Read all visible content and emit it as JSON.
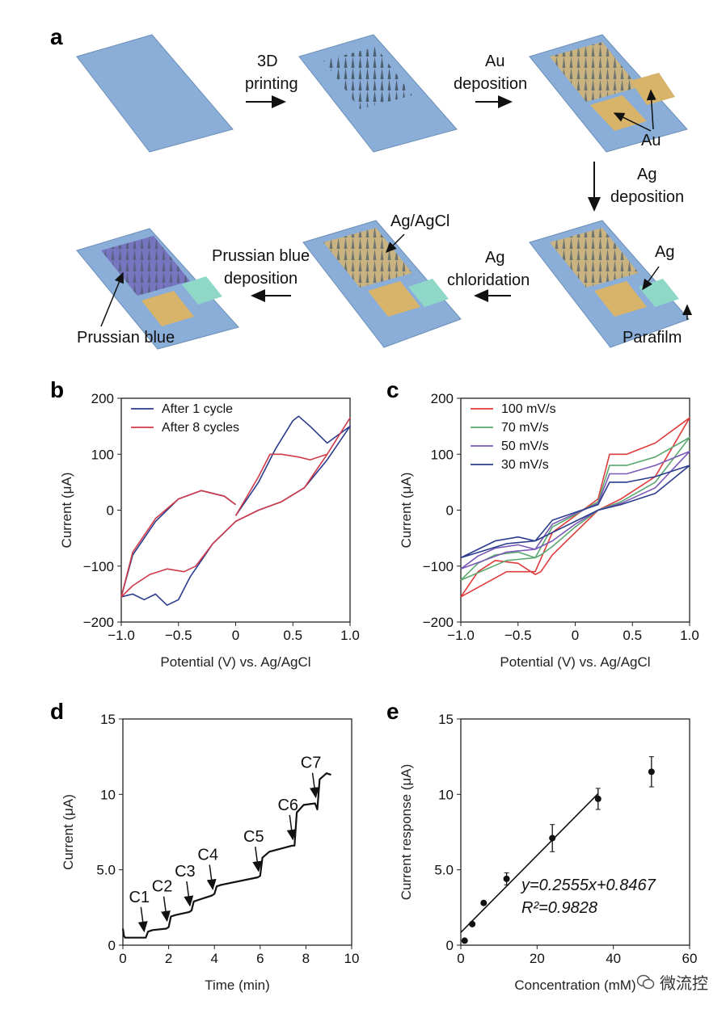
{
  "panel_a": {
    "letter": "a",
    "step1": [
      "3D",
      "printing"
    ],
    "step2": [
      "Au",
      "deposition"
    ],
    "au_label": "Au",
    "step3": [
      "Ag",
      "deposition"
    ],
    "ag_label": "Ag",
    "parafilm_label": "Parafilm",
    "step4": [
      "Ag",
      "chloridation"
    ],
    "agagcl_label": "Ag/AgCl",
    "step5": [
      "Prussian blue",
      "deposition"
    ],
    "prussian_label": "Prussian blue",
    "colors": {
      "base": "#8aaed8",
      "gold": "#d8b46a",
      "ag": "#8fd8c8",
      "prussian": "#7060b8",
      "needle": "#4a5a6a"
    }
  },
  "watermark": {
    "icon": "wechat-icon",
    "text": "微流控"
  },
  "chart_data": [
    {
      "panel": "b",
      "type": "line",
      "xlabel": "Potential (V) vs. Ag/AgCl",
      "ylabel": "Current (μA)",
      "xlim": [
        -1.0,
        1.0
      ],
      "ylim": [
        -200,
        200
      ],
      "xticks": [
        "−1.0",
        "−0.5",
        "0",
        "0.5",
        "1.0"
      ],
      "yticks": [
        "−200",
        "−100",
        "0",
        "100",
        "200"
      ],
      "legend": "top-left",
      "series": [
        {
          "name": "After 1 cycle",
          "color": "#2b3c8c",
          "x": [
            0,
            0.2,
            0.35,
            0.5,
            0.55,
            0.65,
            0.8,
            1.0,
            0.8,
            0.6,
            0.4,
            0.2,
            0,
            -0.2,
            -0.4,
            -0.5,
            -0.6,
            -0.7,
            -0.8,
            -0.9,
            -1.0,
            -0.9,
            -0.7,
            -0.5,
            -0.3,
            -0.1,
            0
          ],
          "y": [
            -10,
            50,
            110,
            160,
            168,
            150,
            120,
            150,
            90,
            40,
            15,
            0,
            -20,
            -60,
            -120,
            -160,
            -170,
            -150,
            -160,
            -150,
            -155,
            -80,
            -20,
            20,
            35,
            25,
            10
          ]
        },
        {
          "name": "After 8 cycles",
          "color": "#d03a4a",
          "x": [
            0,
            0.2,
            0.3,
            0.4,
            0.55,
            0.65,
            0.8,
            1.0,
            0.8,
            0.6,
            0.4,
            0.2,
            0,
            -0.2,
            -0.35,
            -0.45,
            -0.6,
            -0.75,
            -0.9,
            -1.0,
            -0.9,
            -0.7,
            -0.5,
            -0.3,
            -0.1,
            0
          ],
          "y": [
            -10,
            60,
            100,
            100,
            95,
            90,
            100,
            165,
            100,
            40,
            15,
            0,
            -20,
            -60,
            -100,
            -110,
            -105,
            -115,
            -135,
            -155,
            -75,
            -15,
            20,
            35,
            25,
            10
          ]
        }
      ]
    },
    {
      "panel": "c",
      "type": "line",
      "xlabel": "Potential (V) vs. Ag/AgCl",
      "ylabel": "Current (μA)",
      "xlim": [
        -1.0,
        1.0
      ],
      "ylim": [
        -200,
        200
      ],
      "xticks": [
        "−1.0",
        "−0.5",
        "0",
        "0.5",
        "1.0"
      ],
      "yticks": [
        "−200",
        "−100",
        "0",
        "100",
        "200"
      ],
      "legend": "top-left",
      "series": [
        {
          "name": "100 mV/s",
          "color": "#e03a3a",
          "x": [
            -1.0,
            -0.6,
            -0.35,
            -0.2,
            0,
            0.2,
            0.3,
            0.45,
            0.7,
            1.0,
            0.7,
            0.4,
            0.2,
            0,
            -0.2,
            -0.3,
            -0.35,
            -0.5,
            -0.7,
            -0.85,
            -1.0
          ],
          "y": [
            -155,
            -110,
            -110,
            -40,
            -10,
            20,
            100,
            100,
            120,
            165,
            60,
            20,
            0,
            -40,
            -80,
            -110,
            -115,
            -95,
            -90,
            -110,
            -155
          ]
        },
        {
          "name": "70 mV/s",
          "color": "#5aa870",
          "x": [
            -1.0,
            -0.6,
            -0.35,
            -0.2,
            0,
            0.2,
            0.3,
            0.45,
            0.7,
            1.0,
            0.7,
            0.4,
            0.2,
            0,
            -0.2,
            -0.3,
            -0.35,
            -0.5,
            -0.7,
            -0.85,
            -1.0
          ],
          "y": [
            -125,
            -90,
            -85,
            -30,
            -8,
            15,
            80,
            80,
            95,
            130,
            50,
            15,
            0,
            -30,
            -65,
            -80,
            -85,
            -75,
            -80,
            -95,
            -125
          ]
        },
        {
          "name": "50 mV/s",
          "color": "#7a5ab8",
          "x": [
            -1.0,
            -0.6,
            -0.35,
            -0.2,
            0,
            0.2,
            0.3,
            0.45,
            0.7,
            1.0,
            0.7,
            0.4,
            0.2,
            0,
            -0.2,
            -0.3,
            -0.35,
            -0.5,
            -0.7,
            -0.85,
            -1.0
          ],
          "y": [
            -105,
            -75,
            -70,
            -25,
            -6,
            12,
            65,
            65,
            80,
            105,
            40,
            12,
            0,
            -25,
            -55,
            -65,
            -70,
            -62,
            -68,
            -82,
            -105
          ]
        },
        {
          "name": "30 mV/s",
          "color": "#2b3c8c",
          "x": [
            -1.0,
            -0.6,
            -0.35,
            -0.2,
            0,
            0.2,
            0.3,
            0.45,
            0.7,
            1.0,
            0.7,
            0.4,
            0.2,
            0,
            -0.2,
            -0.3,
            -0.35,
            -0.5,
            -0.7,
            -0.85,
            -1.0
          ],
          "y": [
            -85,
            -60,
            -55,
            -18,
            -4,
            10,
            50,
            50,
            60,
            80,
            30,
            10,
            0,
            -20,
            -40,
            -50,
            -55,
            -48,
            -55,
            -70,
            -85
          ]
        }
      ]
    },
    {
      "panel": "d",
      "type": "line",
      "xlabel": "Time (min)",
      "ylabel": "Current (μA)",
      "xlim": [
        0,
        10
      ],
      "ylim": [
        0,
        15
      ],
      "xticks": [
        "0",
        "2",
        "4",
        "6",
        "8",
        "10"
      ],
      "yticks": [
        "0",
        "5.0",
        "10",
        "15"
      ],
      "series": [
        {
          "name": "current",
          "color": "#111111",
          "x": [
            0,
            0.05,
            0.1,
            0.9,
            1.0,
            1.1,
            1.3,
            1.9,
            2.0,
            2.1,
            2.3,
            2.9,
            3.0,
            3.1,
            3.3,
            3.9,
            4.0,
            4.1,
            4.3,
            5.9,
            6.0,
            6.1,
            6.4,
            7.4,
            7.5,
            7.6,
            7.9,
            8.4,
            8.5,
            8.6,
            8.9,
            9.1
          ],
          "y": [
            1.1,
            0.6,
            0.5,
            0.5,
            0.5,
            0.9,
            1.0,
            1.1,
            1.2,
            1.9,
            2.0,
            2.2,
            2.3,
            2.9,
            3.0,
            3.3,
            3.4,
            3.9,
            4.0,
            4.5,
            4.6,
            5.8,
            6.2,
            6.6,
            6.6,
            8.8,
            9.3,
            9.4,
            9.0,
            11.0,
            11.4,
            11.3
          ]
        }
      ],
      "annotations": [
        {
          "text": "C1",
          "x": 1.0,
          "y": 0.6
        },
        {
          "text": "C2",
          "x": 2.0,
          "y": 1.3
        },
        {
          "text": "C3",
          "x": 3.0,
          "y": 2.3
        },
        {
          "text": "C4",
          "x": 4.0,
          "y": 3.4
        },
        {
          "text": "C5",
          "x": 6.0,
          "y": 4.6
        },
        {
          "text": "C6",
          "x": 7.5,
          "y": 6.7
        },
        {
          "text": "C7",
          "x": 8.5,
          "y": 9.5
        }
      ]
    },
    {
      "panel": "e",
      "type": "scatter",
      "xlabel": "Concentration (mM)",
      "ylabel": "Current response (μA)",
      "xlim": [
        0,
        60
      ],
      "ylim": [
        0,
        15
      ],
      "xticks": [
        "0",
        "20",
        "40",
        "60"
      ],
      "yticks": [
        "0",
        "5.0",
        "10",
        "15"
      ],
      "points": [
        {
          "x": 1,
          "y": 0.3,
          "err": 0.1
        },
        {
          "x": 3,
          "y": 1.4,
          "err": 0.1
        },
        {
          "x": 6,
          "y": 2.8,
          "err": 0.1
        },
        {
          "x": 12,
          "y": 4.4,
          "err": 0.4
        },
        {
          "x": 24,
          "y": 7.1,
          "err": 0.9
        },
        {
          "x": 36,
          "y": 9.7,
          "err": 0.7
        },
        {
          "x": 50,
          "y": 11.5,
          "err": 1.0
        }
      ],
      "fit": {
        "slope": 0.2555,
        "intercept": 0.8467,
        "x_range": [
          0,
          36
        ]
      },
      "equation": "y=0.2555x+0.8467",
      "r2": "R²=0.9828"
    }
  ]
}
